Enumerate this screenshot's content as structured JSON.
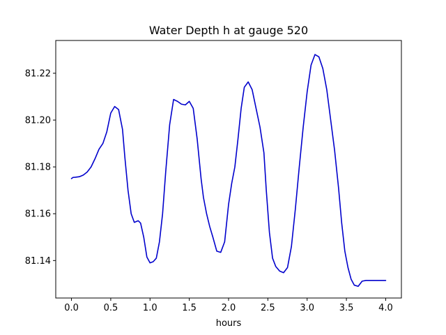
{
  "chart_data": {
    "type": "line",
    "title": "Water Depth h at gauge 520",
    "xlabel": "hours",
    "ylabel": "",
    "xlim": [
      -0.2,
      4.2
    ],
    "ylim": [
      81.124,
      81.234
    ],
    "xticks": [
      0.0,
      0.5,
      1.0,
      1.5,
      2.0,
      2.5,
      3.0,
      3.5,
      4.0
    ],
    "xtick_labels": [
      "0.0",
      "0.5",
      "1.0",
      "1.5",
      "2.0",
      "2.5",
      "3.0",
      "3.5",
      "4.0"
    ],
    "yticks": [
      81.14,
      81.16,
      81.18,
      81.2,
      81.22
    ],
    "ytick_labels": [
      "81.14",
      "81.16",
      "81.18",
      "81.20",
      "81.22"
    ],
    "grid": false,
    "series": [
      {
        "color": "#0000cc",
        "x": [
          0.0,
          0.02,
          0.05,
          0.1,
          0.15,
          0.2,
          0.25,
          0.3,
          0.35,
          0.4,
          0.45,
          0.5,
          0.55,
          0.6,
          0.65,
          0.68,
          0.72,
          0.76,
          0.8,
          0.85,
          0.88,
          0.92,
          0.96,
          1.0,
          1.04,
          1.08,
          1.12,
          1.16,
          1.2,
          1.25,
          1.3,
          1.35,
          1.4,
          1.45,
          1.5,
          1.55,
          1.6,
          1.65,
          1.68,
          1.72,
          1.76,
          1.8,
          1.85,
          1.9,
          1.95,
          2.0,
          2.04,
          2.08,
          2.12,
          2.16,
          2.2,
          2.25,
          2.3,
          2.35,
          2.4,
          2.45,
          2.48,
          2.52,
          2.56,
          2.6,
          2.65,
          2.7,
          2.75,
          2.8,
          2.85,
          2.9,
          2.95,
          3.0,
          3.05,
          3.1,
          3.15,
          3.2,
          3.25,
          3.3,
          3.35,
          3.4,
          3.44,
          3.48,
          3.52,
          3.56,
          3.6,
          3.65,
          3.7,
          3.75,
          3.8,
          3.85,
          3.9,
          3.95,
          4.0
        ],
        "y": [
          81.175,
          81.1755,
          81.1756,
          81.1758,
          81.1765,
          81.1778,
          81.18,
          81.1835,
          81.1875,
          81.19,
          81.195,
          81.203,
          81.2058,
          81.2045,
          81.196,
          81.184,
          81.17,
          81.16,
          81.1563,
          81.157,
          81.156,
          81.15,
          81.1415,
          81.139,
          81.1395,
          81.141,
          81.148,
          81.16,
          81.178,
          81.198,
          81.2088,
          81.208,
          81.2068,
          81.2065,
          81.208,
          81.205,
          81.192,
          81.175,
          81.167,
          81.16,
          81.1545,
          81.15,
          81.144,
          81.1435,
          81.148,
          81.164,
          81.173,
          81.18,
          81.192,
          81.205,
          81.214,
          81.2163,
          81.213,
          81.205,
          81.197,
          81.186,
          81.17,
          81.152,
          81.141,
          81.1375,
          81.1355,
          81.1348,
          81.137,
          81.146,
          81.162,
          81.18,
          81.197,
          81.212,
          81.2235,
          81.228,
          81.227,
          81.222,
          81.213,
          81.2,
          81.187,
          81.171,
          81.156,
          81.144,
          81.137,
          81.132,
          81.1295,
          81.129,
          81.1312,
          81.1315,
          81.1315,
          81.1315,
          81.1315,
          81.1315,
          81.1315
        ]
      }
    ]
  }
}
